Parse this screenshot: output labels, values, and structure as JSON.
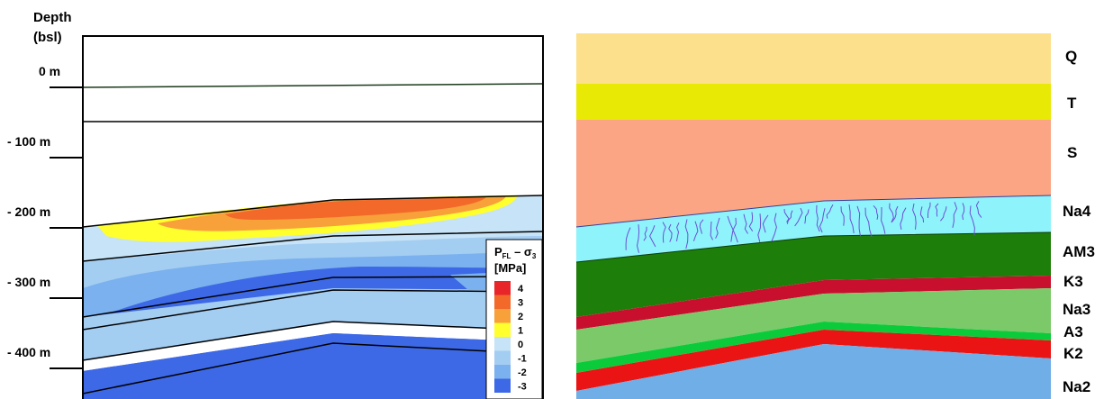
{
  "left_panel": {
    "axis_title_line1": "Depth",
    "axis_title_line2": "(bsl)",
    "depth_ticks": [
      "0 m",
      "- 100 m",
      "- 200 m",
      "- 300 m",
      "- 400 m"
    ],
    "legend": {
      "title_sub_fl": "FL",
      "title_sub_3": "3",
      "unit": "[MPa]",
      "levels": [
        {
          "value": "4",
          "color": "#e8262a"
        },
        {
          "value": "3",
          "color": "#f2692a"
        },
        {
          "value": "2",
          "color": "#f8a13a"
        },
        {
          "value": "1",
          "color": "#ffff2e"
        },
        {
          "value": "0",
          "color": "#c6e3f7"
        },
        {
          "value": "-1",
          "color": "#a4cdf2"
        },
        {
          "value": "-2",
          "color": "#7ab1ee"
        },
        {
          "value": "-3",
          "color": "#3d68e6"
        }
      ]
    }
  },
  "right_panel": {
    "layers": [
      {
        "label": "Q",
        "color": "#fde08c"
      },
      {
        "label": "T",
        "color": "#e8ea06"
      },
      {
        "label": "S",
        "color": "#fba584"
      },
      {
        "label": "Na4",
        "color": "#8ff3fb"
      },
      {
        "label": "AM3",
        "color": "#1e7e0a"
      },
      {
        "label": "K3",
        "color": "#c8102e"
      },
      {
        "label": "Na3",
        "color": "#7cc969"
      },
      {
        "label": "A3",
        "color": "#0ccb3b"
      },
      {
        "label": "K2",
        "color": "#ea1414"
      },
      {
        "label": "Na2",
        "color": "#6faee6"
      }
    ]
  }
}
